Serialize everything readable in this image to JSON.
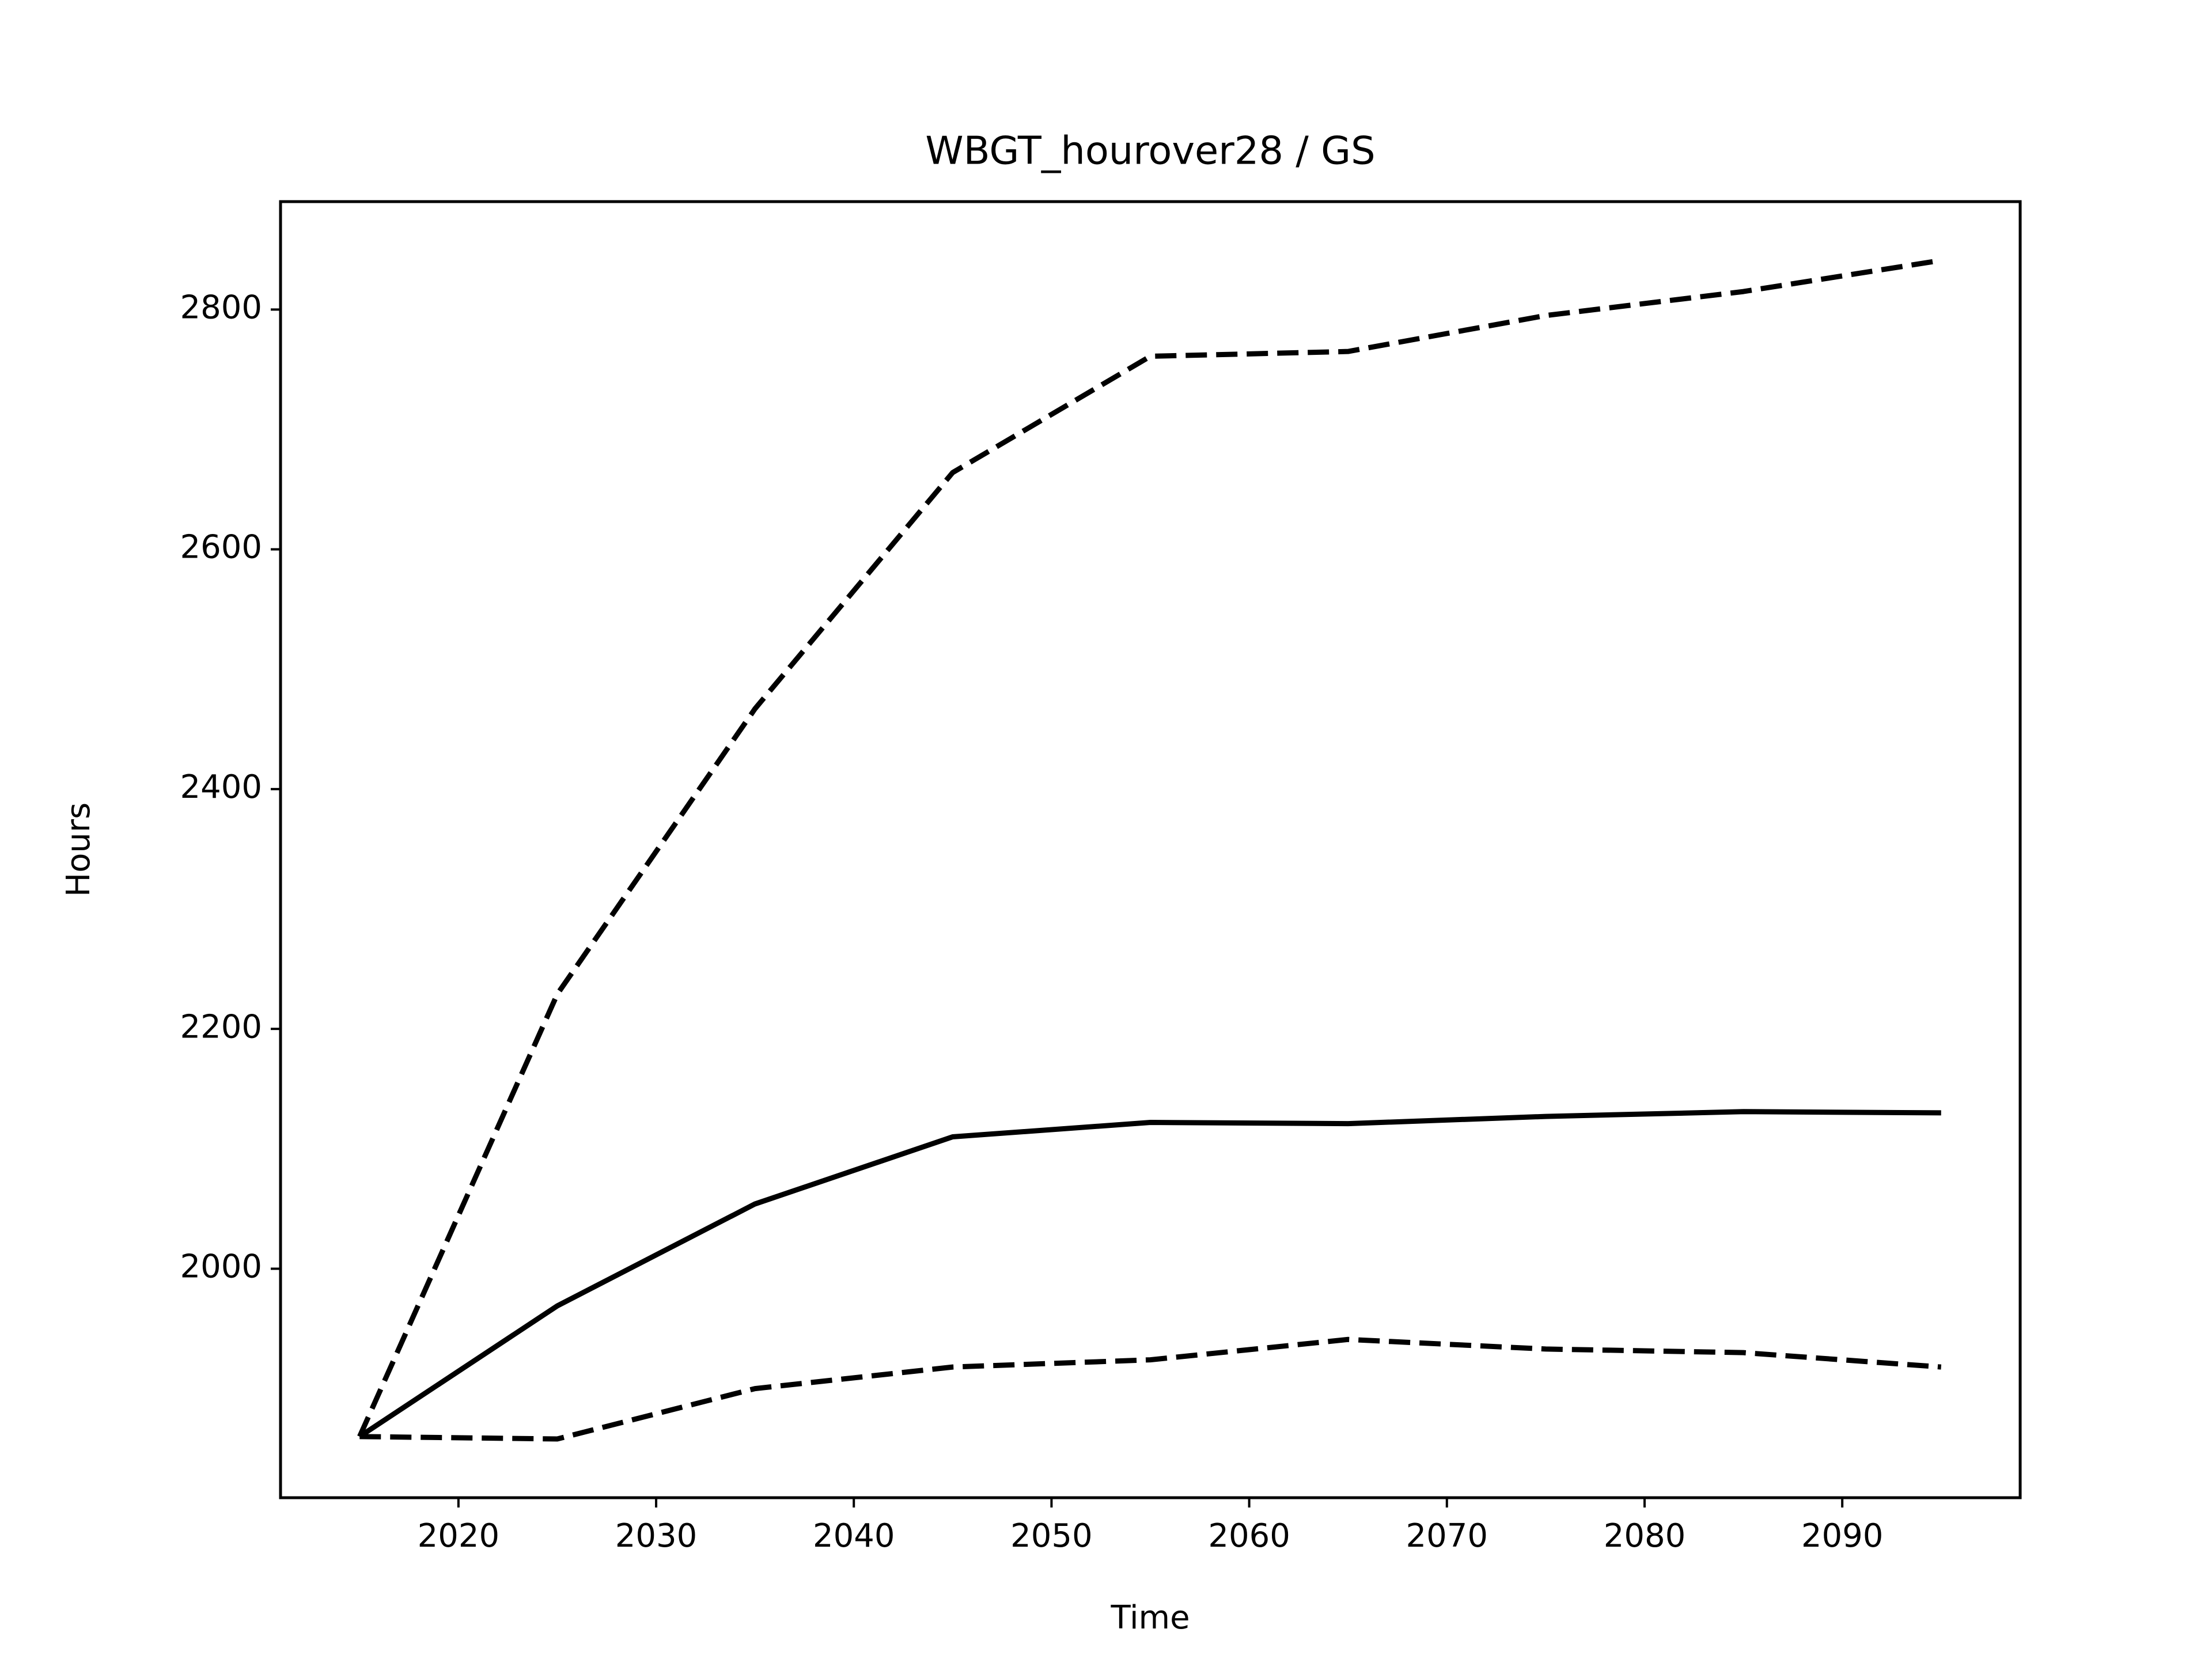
{
  "chart_data": {
    "type": "line",
    "title": "WBGT_hourover28 / GS",
    "x_label": "Time",
    "y_label": "Hours",
    "x": [
      2015,
      2025,
      2035,
      2045,
      2055,
      2065,
      2075,
      2085,
      2095
    ],
    "series": [
      {
        "color": "#000000",
        "style": "solid",
        "values": [
          1860,
          1969,
          2054,
          2110,
          2122,
          2121,
          2127,
          2131,
          2130
        ]
      },
      {
        "color": "#000000",
        "style": "dashed",
        "values": [
          1860,
          2229,
          2467,
          2664,
          2761,
          2765,
          2795,
          2815,
          2841
        ]
      },
      {
        "color": "#000000",
        "style": "dashed",
        "values": [
          1860,
          1858,
          1900,
          1918,
          1924,
          1941,
          1933,
          1930,
          1918
        ]
      }
    ],
    "xlim": [
      2011,
      2099
    ],
    "ylim": [
      1809,
      2890
    ],
    "xticks": [
      2020,
      2030,
      2040,
      2050,
      2060,
      2070,
      2080,
      2090
    ],
    "yticks": [
      2000,
      2200,
      2400,
      2600,
      2800
    ],
    "grid": false
  }
}
